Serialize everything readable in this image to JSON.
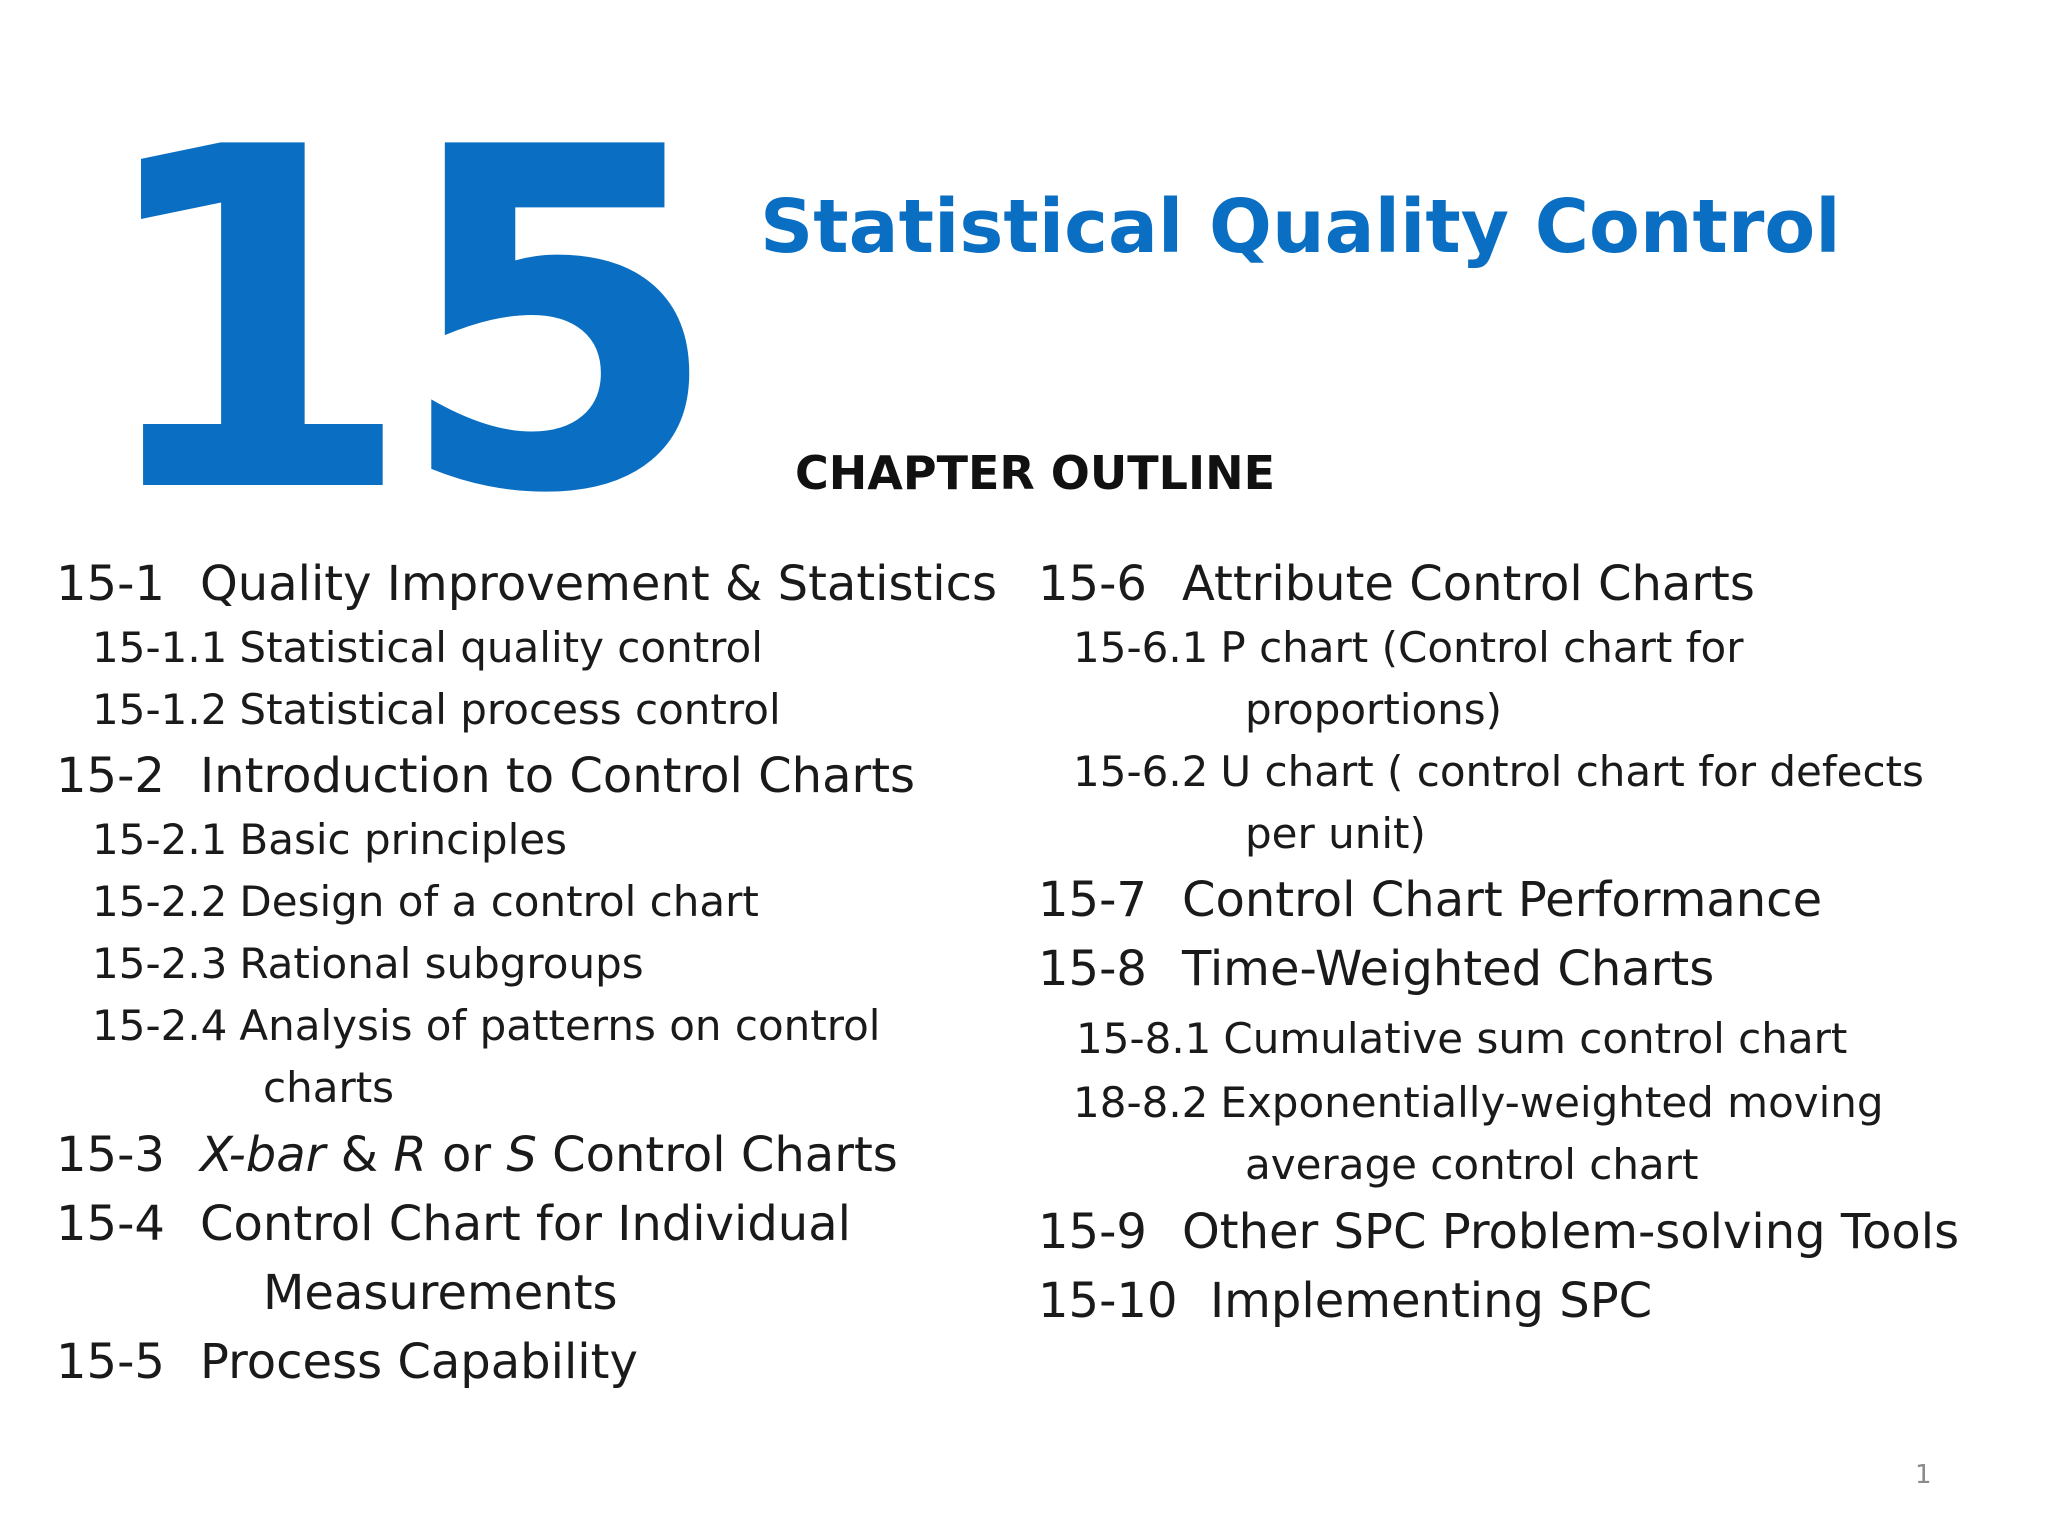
{
  "header": {
    "chapter_number": "15",
    "title": "Statistical Quality Control",
    "outline_heading": "CHAPTER OUTLINE"
  },
  "outline": {
    "left": [
      {
        "num": "15-1",
        "text": "Quality Improvement & Statistics"
      },
      {
        "num": "15-1.1",
        "text": "Statistical quality control"
      },
      {
        "num": "15-1.2",
        "text": "Statistical process control"
      },
      {
        "num": "15-2",
        "text": "Introduction to Control Charts"
      },
      {
        "num": "15-2.1",
        "text": "Basic principles"
      },
      {
        "num": "15-2.2",
        "text": "Design of a control chart"
      },
      {
        "num": "15-2.3",
        "text": "Rational subgroups"
      },
      {
        "num": "15-2.4",
        "text": "Analysis of patterns on control",
        "cont": "charts"
      },
      {
        "num": "15-3",
        "text_parts": [
          "X-bar",
          " & ",
          "R",
          " or ",
          "S",
          " Control Charts"
        ]
      },
      {
        "num": "15-4",
        "text": "Control Chart for Individual",
        "cont": "Measurements"
      },
      {
        "num": "15-5",
        "text": "Process Capability"
      }
    ],
    "right": [
      {
        "num": "15-6",
        "text": "Attribute Control Charts"
      },
      {
        "num": "15-6.1",
        "text": "P chart (Control chart for",
        "cont": "proportions)"
      },
      {
        "num": "15-6.2",
        "text": "U chart ( control chart for defects",
        "cont": "per unit)"
      },
      {
        "num": "15-7",
        "text": "Control Chart Performance"
      },
      {
        "num": "15-8",
        "text": "Time-Weighted Charts"
      },
      {
        "num": "15-8.1",
        "text": "Cumulative sum control chart"
      },
      {
        "num": "18-8.2",
        "text": "Exponentially-weighted moving",
        "cont": "average control chart"
      },
      {
        "num": "15-9",
        "text": "Other SPC Problem-solving Tools"
      },
      {
        "num": "15-10",
        "text": "Implementing SPC"
      }
    ]
  },
  "footer": {
    "page_number": "1"
  }
}
